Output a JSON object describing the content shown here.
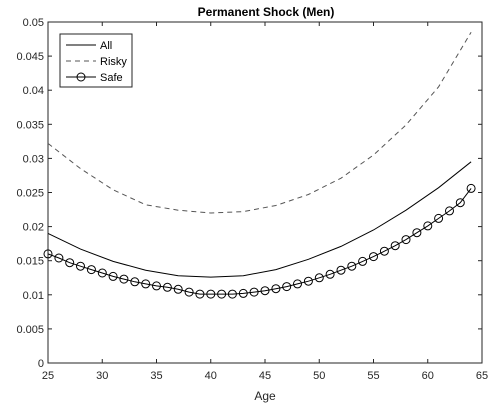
{
  "chart_data": {
    "type": "line",
    "title": "Permanent Shock (Men)",
    "xlabel": "Age",
    "ylabel": "",
    "xlim": [
      25,
      65
    ],
    "ylim": [
      0,
      0.05
    ],
    "xticks": [
      "25",
      "30",
      "35",
      "40",
      "45",
      "50",
      "55",
      "60",
      "65"
    ],
    "yticks": [
      "0",
      "0.005",
      "0.01",
      "0.015",
      "0.02",
      "0.025",
      "0.03",
      "0.035",
      "0.04",
      "0.045",
      "0.05"
    ],
    "grid": false,
    "legend_position": "top-left",
    "series": [
      {
        "name": "All",
        "style": "solid",
        "color": "#000000",
        "x": [
          25,
          28,
          31,
          34,
          37,
          40,
          43,
          46,
          49,
          52,
          55,
          58,
          61,
          64
        ],
        "y": [
          0.019,
          0.0167,
          0.0149,
          0.0136,
          0.0128,
          0.0126,
          0.0128,
          0.0137,
          0.0152,
          0.0171,
          0.0195,
          0.0224,
          0.0257,
          0.0295
        ]
      },
      {
        "name": "Risky",
        "style": "dashed",
        "color": "#555555",
        "x": [
          25,
          28,
          31,
          34,
          37,
          40,
          43,
          46,
          49,
          52,
          55,
          58,
          61,
          64
        ],
        "y": [
          0.0322,
          0.0285,
          0.0254,
          0.0232,
          0.0224,
          0.022,
          0.0222,
          0.0231,
          0.0247,
          0.0271,
          0.0305,
          0.0349,
          0.0405,
          0.0485
        ]
      },
      {
        "name": "Safe",
        "style": "solid-circle",
        "color": "#000000",
        "x": [
          25,
          26,
          27,
          28,
          29,
          30,
          31,
          32,
          33,
          34,
          35,
          36,
          37,
          38,
          39,
          40,
          41,
          42,
          43,
          44,
          45,
          46,
          47,
          48,
          49,
          50,
          51,
          52,
          53,
          54,
          55,
          56,
          57,
          58,
          59,
          60,
          61,
          62,
          63,
          64
        ],
        "y": [
          0.016,
          0.0154,
          0.0147,
          0.0142,
          0.0137,
          0.0132,
          0.0127,
          0.0123,
          0.0119,
          0.0116,
          0.0113,
          0.0111,
          0.0108,
          0.0104,
          0.0101,
          0.0101,
          0.0101,
          0.0101,
          0.0102,
          0.0104,
          0.0106,
          0.0109,
          0.0112,
          0.0116,
          0.012,
          0.0125,
          0.013,
          0.0136,
          0.0142,
          0.0149,
          0.0156,
          0.0164,
          0.0172,
          0.0181,
          0.0191,
          0.0201,
          0.0212,
          0.0223,
          0.0235,
          0.0256
        ]
      }
    ]
  }
}
